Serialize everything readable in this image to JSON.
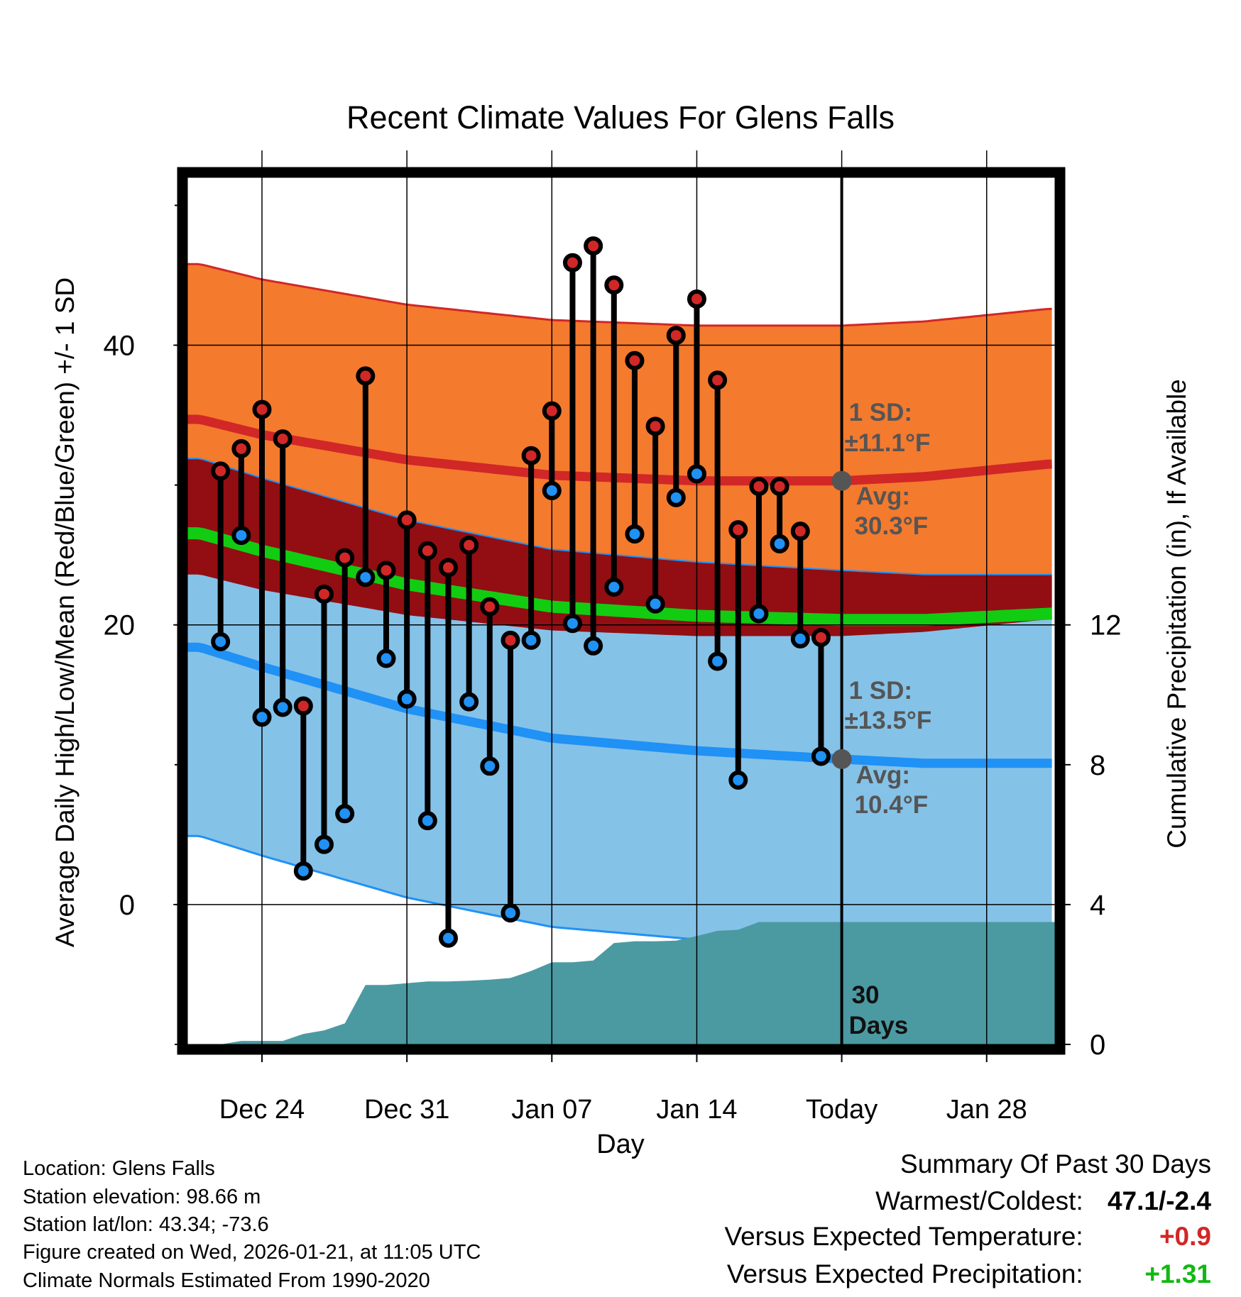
{
  "colors": {
    "high_band": "#f47a2e",
    "high_line": "#d12727",
    "low_band": "#85c2e8",
    "low_line": "#2091f5",
    "overlap": "#920e13",
    "mean_line": "#12cc12",
    "precip": "#4b9aa2",
    "annotation": "#555555",
    "positive_temp": "#d12727",
    "positive_precip": "#12b812"
  },
  "chart_data": {
    "type": "line",
    "title": "Recent Climate Values For Glens Falls",
    "xlabel": "Day",
    "ylabel": "Average Daily High/Low/Mean (Red/Blue/Green) +/- 1 SD",
    "y2label": "Cumulative Precipitation (in), If Available",
    "ylim": [
      -10,
      52
    ],
    "y2lim": [
      0,
      24.8
    ],
    "xlim": [
      -3.6,
      38.3
    ],
    "yticks": [
      0,
      20,
      40
    ],
    "y2ticks": [
      0,
      4,
      8,
      12
    ],
    "xtick_positions": [
      0,
      7,
      14,
      21,
      28,
      35
    ],
    "xtick_labels": [
      "Dec 24",
      "Dec 31",
      "Jan 07",
      "Jan 14",
      "Today",
      "Jan 28"
    ],
    "today_index": 28,
    "normals": {
      "x": [
        -3,
        0,
        7,
        14,
        21,
        28,
        32,
        38
      ],
      "high_avg": [
        34.7,
        33.6,
        31.8,
        30.7,
        30.3,
        30.3,
        30.6,
        31.5
      ],
      "high_sd": 11.1,
      "low_avg": [
        18.4,
        17.0,
        14.0,
        11.9,
        11.0,
        10.4,
        10.1,
        10.1
      ],
      "low_sd": 13.5
    },
    "observed": {
      "x": [
        -2,
        -1,
        0,
        1,
        2,
        3,
        4,
        5,
        6,
        7,
        8,
        9,
        10,
        11,
        12,
        13,
        14,
        15,
        16,
        17,
        18,
        19,
        20,
        21,
        22,
        23,
        24,
        25,
        26,
        27
      ],
      "high": [
        31,
        32.6,
        35.4,
        33.3,
        14.2,
        22.2,
        24.8,
        37.8,
        23.9,
        27.5,
        25.3,
        24.1,
        25.7,
        21.3,
        18.9,
        32.1,
        35.3,
        45.9,
        47.1,
        44.3,
        38.9,
        34.2,
        40.7,
        43.3,
        37.5,
        26.8,
        29.9,
        29.9,
        26.7,
        19.1
      ],
      "low": [
        18.8,
        26.4,
        13.4,
        14.1,
        2.4,
        4.3,
        6.5,
        23.4,
        17.6,
        14.7,
        6.0,
        -2.4,
        14.5,
        9.9,
        -0.6,
        18.9,
        29.6,
        20.1,
        18.5,
        22.7,
        26.5,
        21.5,
        29.1,
        30.8,
        17.4,
        8.9,
        20.8,
        25.8,
        19.0,
        10.6
      ]
    },
    "precip_cumulative": {
      "x": [
        -3.6,
        -2,
        -1,
        0,
        1,
        2,
        3,
        4,
        5,
        6,
        7,
        8,
        9,
        10,
        11,
        12,
        13,
        14,
        15,
        16,
        17,
        18,
        19,
        20,
        21,
        22,
        23,
        24,
        25,
        26,
        27,
        28,
        38.3
      ],
      "values": [
        0,
        0,
        0.1,
        0.1,
        0.1,
        0.3,
        0.4,
        0.6,
        1.7,
        1.7,
        1.75,
        1.8,
        1.8,
        1.82,
        1.85,
        1.9,
        2.1,
        2.35,
        2.35,
        2.4,
        2.9,
        2.95,
        2.95,
        2.97,
        3.1,
        3.25,
        3.28,
        3.5,
        3.5,
        3.5,
        3.5,
        3.5,
        3.5
      ]
    },
    "annotations": {
      "high_sd_line1": "1 SD:",
      "high_sd_line2": "±11.1°F",
      "high_avg_line1": "Avg:",
      "high_avg_line2": "30.3°F",
      "low_sd_line1": "1 SD:",
      "low_sd_line2": "±13.5°F",
      "low_avg_line1": "Avg:",
      "low_avg_line2": "10.4°F",
      "days_line1": "30",
      "days_line2": "Days"
    }
  },
  "info": {
    "location": "Location: Glens Falls",
    "elevation": "Station elevation: 98.66 m",
    "latlon": "Station lat/lon: 43.34; -73.6",
    "created": "Figure created on Wed, 2026-01-21, at 11:05 UTC",
    "normals": "Climate Normals Estimated From 1990-2020"
  },
  "summary": {
    "title": "Summary Of Past 30 Days",
    "warmest_label": "Warmest/Coldest:",
    "warmest_value": "47.1/-2.4",
    "temp_label": "Versus Expected Temperature:",
    "temp_value": "+0.9",
    "precip_label": "Versus Expected Precipitation:",
    "precip_value": "+1.31"
  }
}
